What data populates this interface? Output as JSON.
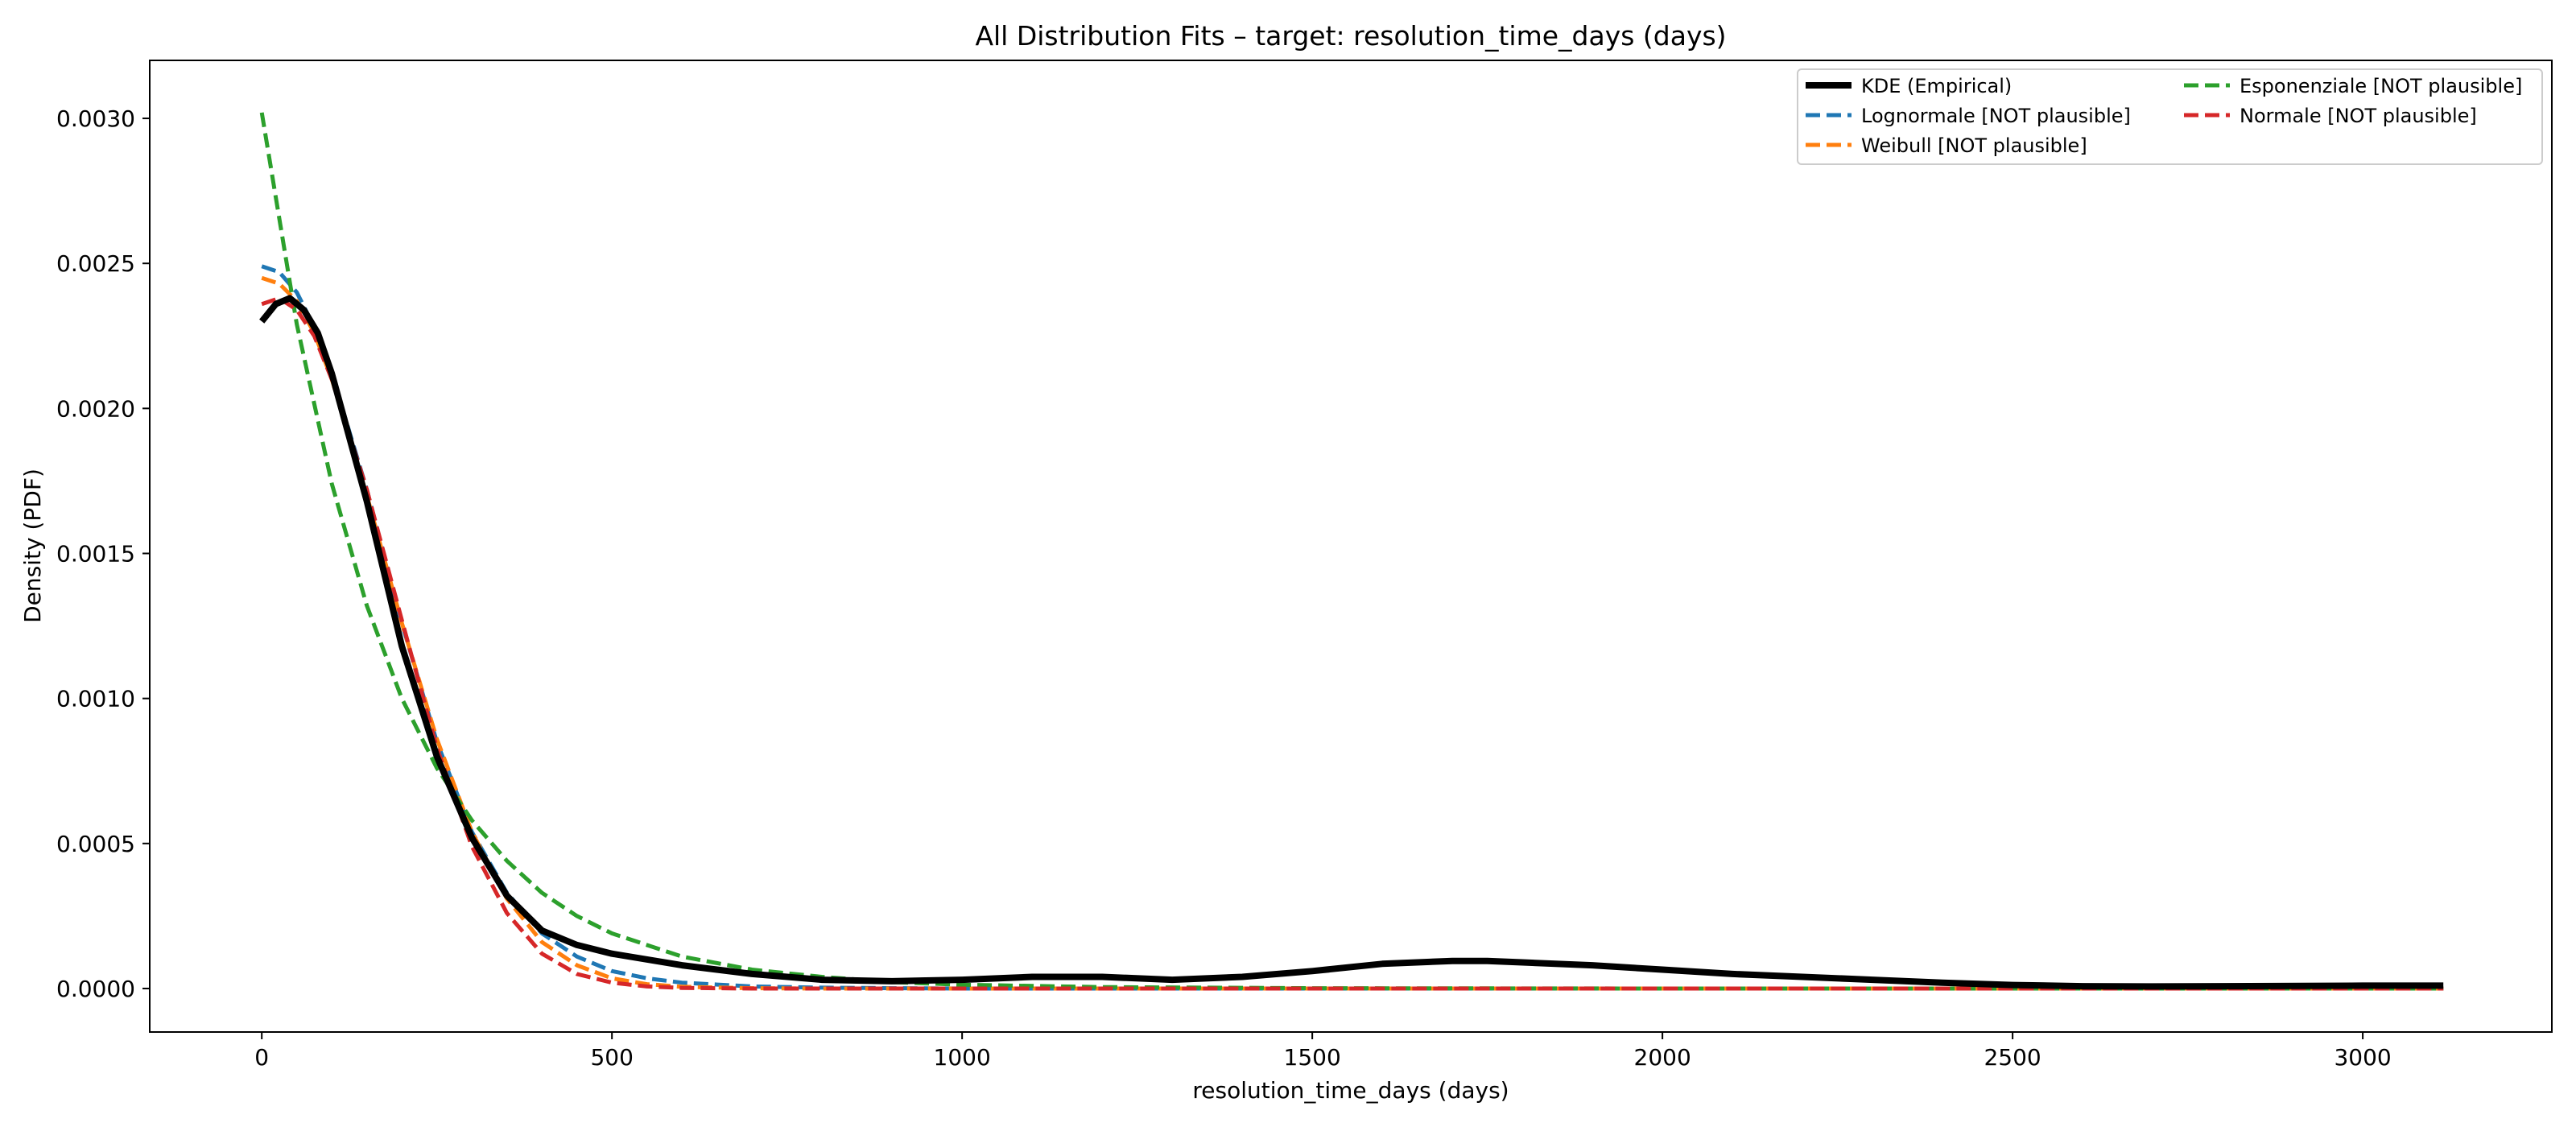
{
  "chart_data": {
    "type": "line",
    "title": "All Distribution Fits – target: resolution_time_days (days)",
    "xlabel": "resolution_time_days (days)",
    "ylabel": "Density (PDF)",
    "xlim": [
      -160,
      3270
    ],
    "ylim": [
      -0.00015,
      0.0032
    ],
    "xticks": [
      0,
      500,
      1000,
      1500,
      2000,
      2500,
      3000
    ],
    "xtick_labels": [
      "0",
      "500",
      "1000",
      "1500",
      "2000",
      "2500",
      "3000"
    ],
    "yticks": [
      0.0,
      0.0005,
      0.001,
      0.0015,
      0.002,
      0.0025,
      0.003
    ],
    "ytick_labels": [
      "0.0000",
      "0.0005",
      "0.0010",
      "0.0015",
      "0.0020",
      "0.0025",
      "0.0030"
    ],
    "grid": false,
    "legend_position": "top-right",
    "legend_columns": 2,
    "series": [
      {
        "name": "KDE (Empirical)",
        "color": "#000000",
        "style": "solid",
        "x": [
          0,
          20,
          40,
          60,
          80,
          100,
          150,
          200,
          250,
          300,
          350,
          400,
          450,
          500,
          600,
          700,
          800,
          900,
          1000,
          1100,
          1200,
          1300,
          1400,
          1500,
          1600,
          1700,
          1750,
          1800,
          1900,
          2000,
          2100,
          2200,
          2300,
          2400,
          2500,
          2600,
          2700,
          2800,
          3000,
          3115
        ],
        "y": [
          0.0023,
          0.00236,
          0.00238,
          0.00234,
          0.00226,
          0.00212,
          0.00168,
          0.00118,
          0.0008,
          0.00052,
          0.00032,
          0.0002,
          0.00015,
          0.00012,
          8e-05,
          5e-05,
          3e-05,
          2.5e-05,
          3e-05,
          4e-05,
          4e-05,
          3e-05,
          4e-05,
          6e-05,
          8.5e-05,
          9.5e-05,
          9.5e-05,
          9e-05,
          8e-05,
          6.5e-05,
          5e-05,
          4e-05,
          3e-05,
          2e-05,
          1.2e-05,
          8e-06,
          7e-06,
          8e-06,
          1e-05,
          1e-05
        ]
      },
      {
        "name": "Lognormale [NOT plausible]",
        "color": "#1f77b4",
        "style": "dashed",
        "x": [
          0,
          25,
          50,
          75,
          100,
          150,
          200,
          250,
          300,
          350,
          400,
          450,
          500,
          550,
          600,
          700,
          800,
          900,
          1000,
          1500,
          2000,
          2500,
          3000,
          3115
        ],
        "y": [
          0.00249,
          0.00247,
          0.0024,
          0.00228,
          0.00212,
          0.00172,
          0.00126,
          0.00085,
          0.00054,
          0.00033,
          0.00019,
          0.00011,
          6e-05,
          3.5e-05,
          2e-05,
          7e-06,
          3e-06,
          1e-06,
          0.0,
          0.0,
          0.0,
          0.0,
          0.0,
          0.0
        ]
      },
      {
        "name": "Weibull [NOT plausible]",
        "color": "#ff7f0e",
        "style": "dashed",
        "x": [
          0,
          25,
          50,
          75,
          100,
          150,
          200,
          250,
          300,
          350,
          400,
          450,
          500,
          550,
          600,
          700,
          800,
          1000,
          1500,
          2000,
          2500,
          3000,
          3115
        ],
        "y": [
          0.00245,
          0.00243,
          0.00237,
          0.00226,
          0.0021,
          0.0017,
          0.00126,
          0.00086,
          0.00054,
          0.00031,
          0.00016,
          8e-05,
          3.5e-05,
          1.5e-05,
          6e-06,
          1e-06,
          0.0,
          0.0,
          0.0,
          0.0,
          0.0,
          0.0,
          0.0
        ]
      },
      {
        "name": "Esponenziale [NOT plausible]",
        "color": "#2ca02c",
        "style": "dashed",
        "x": [
          0,
          50,
          100,
          150,
          200,
          250,
          300,
          350,
          400,
          450,
          500,
          600,
          700,
          800,
          900,
          1000,
          1200,
          1500,
          2000,
          2500,
          3000,
          3115
        ],
        "y": [
          0.00302,
          0.00229,
          0.00174,
          0.00132,
          0.001,
          0.00076,
          0.00058,
          0.00044,
          0.00033,
          0.00025,
          0.00019,
          0.00011,
          6.5e-05,
          4e-05,
          2.2e-05,
          1.3e-05,
          5e-06,
          1e-06,
          0.0,
          0.0,
          0.0,
          0.0
        ]
      },
      {
        "name": "Normale [NOT plausible]",
        "color": "#d62728",
        "style": "dashed",
        "x": [
          0,
          25,
          50,
          75,
          100,
          150,
          200,
          250,
          300,
          350,
          400,
          450,
          500,
          550,
          600,
          700,
          800,
          1000,
          1500,
          2000,
          2500,
          3000,
          3115
        ],
        "y": [
          0.00236,
          0.00238,
          0.00234,
          0.00225,
          0.0021,
          0.00172,
          0.00127,
          0.00083,
          0.00049,
          0.00026,
          0.00012,
          5e-05,
          2e-05,
          7e-06,
          2e-06,
          0.0,
          0.0,
          0.0,
          0.0,
          0.0,
          0.0,
          0.0,
          0.0
        ]
      }
    ]
  }
}
